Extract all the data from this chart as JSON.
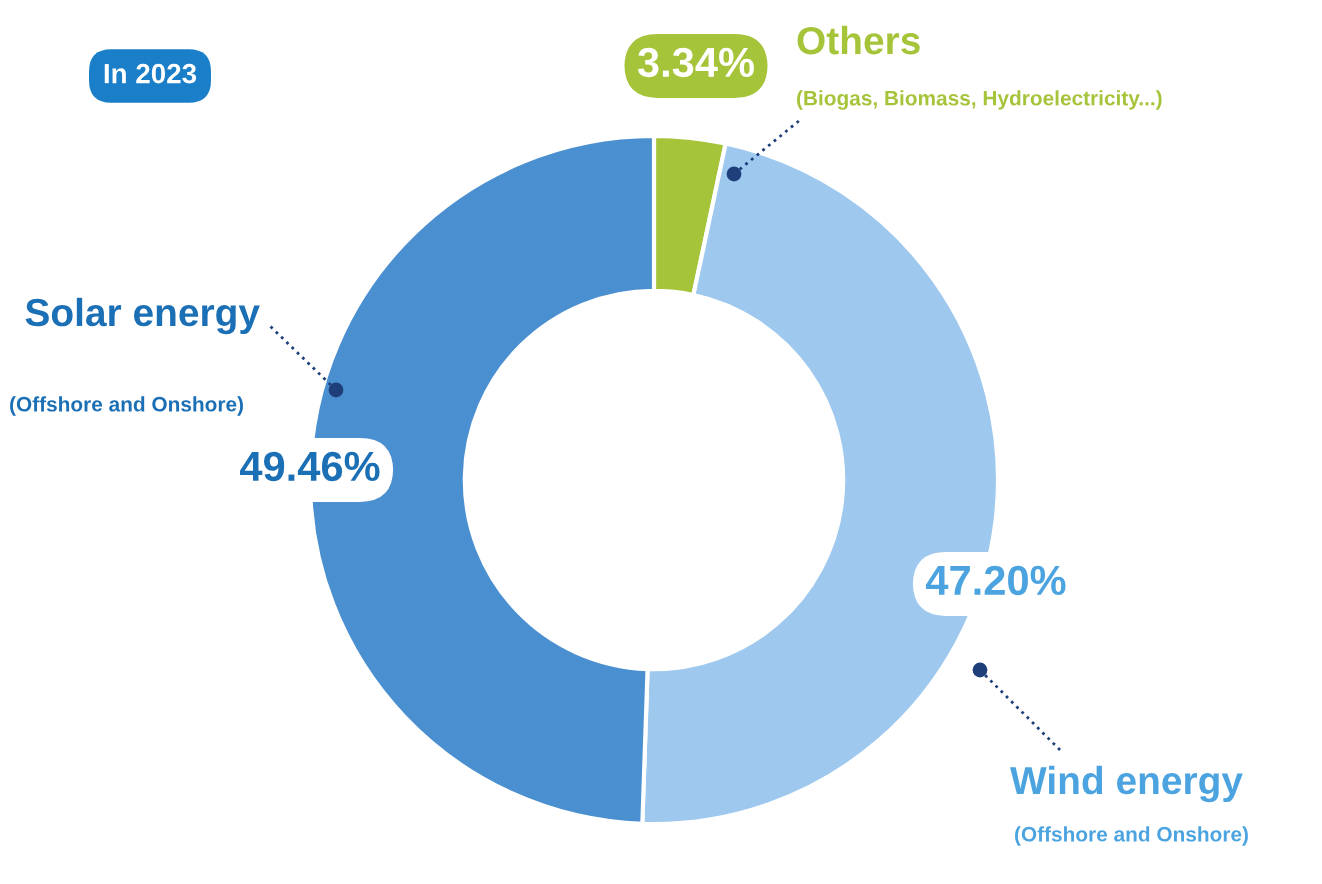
{
  "chart_data": {
    "type": "donut",
    "title": "In 2023",
    "categories": [
      "Others",
      "Wind energy",
      "Solar energy"
    ],
    "values": [
      3.34,
      47.2,
      49.46
    ],
    "colors": [
      "#a6c43a",
      "#9ec8ee",
      "#4a8fd0"
    ],
    "value_labels": [
      "3.34%",
      "47.20%",
      "49.46%"
    ],
    "annotations": [
      "(Biogas, Biomass, Hydroelectricity...)",
      "(Offshore and Onshore)",
      "(Offshore and Onshore)"
    ]
  }
}
